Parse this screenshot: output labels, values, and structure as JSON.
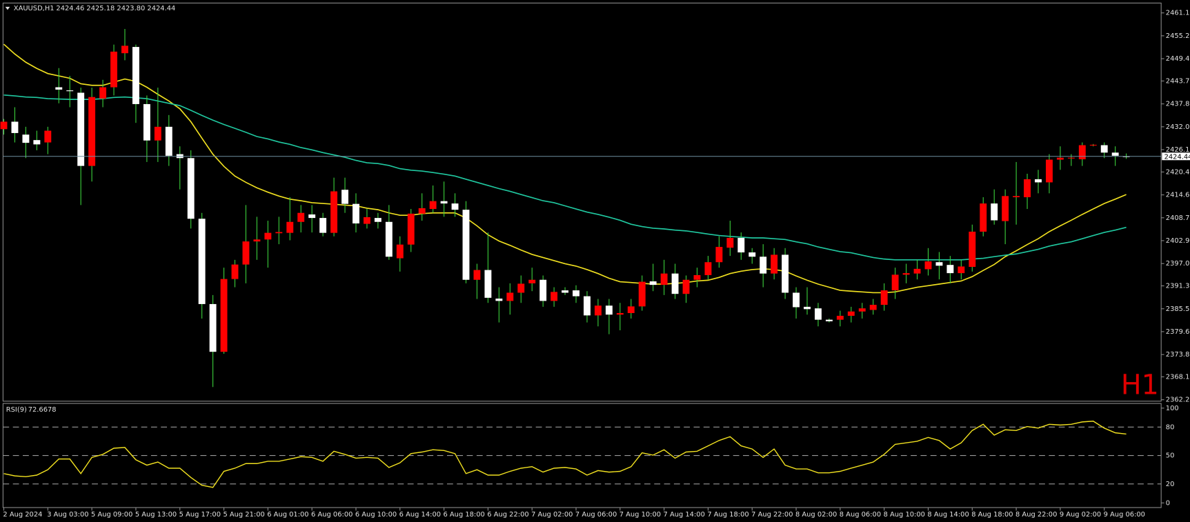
{
  "chart_data": [
    {
      "type": "candlestick",
      "title": "XAUUSD,H1",
      "quote": "2424.46 2425.18 2423.80 2424.44",
      "timeframe_label": "H1",
      "bull_color": "#ff0000",
      "bear_color": "#ffffff",
      "wick_color": "#3cd23c",
      "last_price_line_color": "#6f8fa0",
      "xlim": [
        -0.07,
        105.17
      ],
      "ylim": [
        2361.88,
        2463.62
      ],
      "yticks": [
        {
          "value": 2461.1,
          "label": "2461.10"
        },
        {
          "value": 2455.25,
          "label": "2455.25"
        },
        {
          "value": 2449.4,
          "label": "2449.40"
        },
        {
          "value": 2443.7,
          "label": "2443.70"
        },
        {
          "value": 2437.85,
          "label": "2437.85"
        },
        {
          "value": 2432.0,
          "label": "2432.00"
        },
        {
          "value": 2426.15,
          "label": "2426.15"
        },
        {
          "value": 2420.45,
          "label": "2420.45"
        },
        {
          "value": 2414.6,
          "label": "2414.60"
        },
        {
          "value": 2408.75,
          "label": "2408.75"
        },
        {
          "value": 2402.9,
          "label": "2402.90"
        },
        {
          "value": 2397.05,
          "label": "2397.05"
        },
        {
          "value": 2391.35,
          "label": "2391.35"
        },
        {
          "value": 2385.5,
          "label": "2385.50"
        },
        {
          "value": 2379.65,
          "label": "2379.65"
        },
        {
          "value": 2373.8,
          "label": "2373.80"
        },
        {
          "value": 2368.1,
          "label": "2368.10"
        },
        {
          "value": 2362.25,
          "label": "2362.25"
        }
      ],
      "open": [
        2431.4,
        2433.3,
        2430.0,
        2428.6,
        2428.0,
        2442.1,
        2441.3,
        2440.7,
        2422.0,
        2439.2,
        2442.1,
        2450.8,
        2452.4,
        2437.8,
        2428.5,
        2432.0,
        2425.0,
        2424.0,
        2408.5,
        2386.7,
        2374.5,
        2393.1,
        2396.8,
        2402.7,
        2403.2,
        2404.8,
        2404.9,
        2407.7,
        2409.6,
        2408.7,
        2404.9,
        2415.9,
        2412.3,
        2407.2,
        2408.7,
        2407.7,
        2398.4,
        2401.9,
        2409.8,
        2411.0,
        2413.0,
        2412.4,
        2410.8,
        2392.9,
        2395.4,
        2388.1,
        2387.5,
        2389.6,
        2392.0,
        2392.9,
        2387.5,
        2390.2,
        2390.2,
        2388.7,
        2383.8,
        2386.3,
        2384.0,
        2384.4,
        2386.1,
        2392.5,
        2391.6,
        2394.5,
        2389.3,
        2392.9,
        2394.1,
        2397.4,
        2401.1,
        2403.6,
        2399.9,
        2398.8,
        2394.5,
        2399.3,
        2389.6,
        2386.0,
        2385.6,
        2382.7,
        2382.7,
        2383.7,
        2384.8,
        2385.2,
        2386.5,
        2390.2,
        2394.2,
        2394.5,
        2395.6,
        2397.4,
        2396.7,
        2394.6,
        2396.2,
        2405.2,
        2412.4,
        2407.9,
        2414.0,
        2414.0,
        2418.6,
        2417.8,
        2423.6,
        2423.9,
        2423.7,
        2427.3,
        2427.3,
        2425.4,
        2424.46
      ],
      "high": [
        2434,
        2437,
        2432,
        2431,
        2432,
        2447,
        2445,
        2442,
        2442,
        2444,
        2453,
        2457,
        2453,
        2440,
        2442,
        2435,
        2427,
        2426,
        2410,
        2389,
        2396,
        2398,
        2412,
        2409,
        2408,
        2409,
        2414,
        2412,
        2412,
        2410,
        2419,
        2419,
        2415,
        2411,
        2410,
        2412,
        2404,
        2411,
        2415,
        2417,
        2418,
        2415,
        2413,
        2397,
        2405,
        2391,
        2392,
        2394,
        2396,
        2394,
        2391,
        2391,
        2391.5,
        2390,
        2388,
        2388,
        2387,
        2388,
        2394,
        2397,
        2398,
        2397,
        2394,
        2396,
        2399,
        2404,
        2408,
        2405,
        2401,
        2402,
        2401,
        2401,
        2391,
        2391,
        2387,
        2383,
        2385,
        2386,
        2387,
        2388,
        2392,
        2396,
        2397,
        2398,
        2401,
        2400,
        2399,
        2398,
        2407,
        2414,
        2416,
        2416,
        2423,
        2420,
        2421,
        2425,
        2427,
        2425,
        2428,
        2427.6,
        2428,
        2427,
        2425.18
      ],
      "low": [
        2430,
        2428,
        2424,
        2426,
        2425,
        2438,
        2437,
        2412,
        2418,
        2437,
        2440,
        2449,
        2433,
        2423,
        2423,
        2422,
        2416,
        2406,
        2383,
        2365.5,
        2374,
        2391,
        2392,
        2398,
        2396,
        2402,
        2403,
        2405,
        2405,
        2404,
        2404,
        2410,
        2405,
        2406,
        2406,
        2398,
        2395,
        2400,
        2408,
        2410,
        2409,
        2409,
        2392,
        2388,
        2387,
        2382,
        2384,
        2387,
        2390,
        2386,
        2386,
        2389,
        2387,
        2382,
        2381,
        2379,
        2380,
        2383,
        2385,
        2390,
        2389,
        2388,
        2387,
        2391,
        2393,
        2396,
        2399,
        2398,
        2397,
        2391,
        2393,
        2388,
        2383,
        2384,
        2381,
        2382,
        2381,
        2382,
        2383,
        2384,
        2385,
        2388,
        2392,
        2393,
        2394,
        2393,
        2392,
        2393,
        2395,
        2404,
        2407,
        2402,
        2407,
        2411,
        2415,
        2415,
        2421,
        2422,
        2422,
        2427,
        2424,
        2422,
        2423.8
      ],
      "close": [
        2433.3,
        2430.4,
        2427.9,
        2427.5,
        2431.0,
        2441.5,
        2441.1,
        2422.0,
        2439.6,
        2442.1,
        2451.2,
        2452.7,
        2437.8,
        2428.5,
        2432.0,
        2424.6,
        2424.0,
        2408.5,
        2386.7,
        2374.5,
        2393.1,
        2396.8,
        2402.7,
        2403.2,
        2404.9,
        2405.1,
        2407.7,
        2410.0,
        2408.7,
        2404.9,
        2415.5,
        2412.3,
        2407.3,
        2408.9,
        2407.7,
        2398.8,
        2401.9,
        2409.8,
        2411.2,
        2413.0,
        2412.4,
        2410.8,
        2392.9,
        2395.4,
        2388.3,
        2387.5,
        2389.6,
        2391.9,
        2392.9,
        2387.5,
        2389.8,
        2389.6,
        2388.7,
        2383.8,
        2386.3,
        2384.0,
        2384.4,
        2386.1,
        2392.4,
        2391.6,
        2394.5,
        2389.3,
        2392.9,
        2394.1,
        2397.4,
        2401.3,
        2403.6,
        2399.9,
        2398.8,
        2394.5,
        2399.3,
        2389.6,
        2385.9,
        2385.4,
        2382.7,
        2382.3,
        2383.7,
        2384.8,
        2385.6,
        2386.5,
        2390.2,
        2394.2,
        2394.6,
        2395.7,
        2397.6,
        2396.5,
        2394.6,
        2396.3,
        2405.2,
        2412.4,
        2408.1,
        2414.3,
        2414.3,
        2418.6,
        2417.8,
        2423.6,
        2424.1,
        2424.1,
        2427.3,
        2427.4,
        2425.4,
        2424.6,
        2424.44
      ],
      "series": [
        {
          "color": "#f0e020",
          "values": [
            2453.1,
            2450.6,
            2448.5,
            2446.9,
            2445.6,
            2445.0,
            2444.4,
            2443.0,
            2442.6,
            2442.6,
            2443.4,
            2444.2,
            2443.6,
            2442.1,
            2440.3,
            2438.6,
            2436.6,
            2433.3,
            2429.1,
            2425.0,
            2421.9,
            2419.4,
            2417.8,
            2416.4,
            2415.3,
            2414.3,
            2413.5,
            2413.1,
            2412.6,
            2412.4,
            2412.2,
            2412.0,
            2411.8,
            2411.2,
            2410.8,
            2410.0,
            2409.4,
            2409.4,
            2409.8,
            2410.0,
            2410.0,
            2410.0,
            2408.7,
            2406.7,
            2404.4,
            2402.8,
            2401.7,
            2400.5,
            2399.4,
            2398.6,
            2397.8,
            2397.0,
            2396.4,
            2395.5,
            2394.5,
            2393.3,
            2392.4,
            2392.2,
            2392.0,
            2391.8,
            2391.8,
            2392.0,
            2392.2,
            2392.6,
            2392.8,
            2393.5,
            2394.5,
            2395.1,
            2395.5,
            2395.7,
            2395.5,
            2395.1,
            2393.9,
            2392.8,
            2391.8,
            2391.0,
            2390.2,
            2390.0,
            2389.8,
            2389.6,
            2389.6,
            2389.8,
            2390.4,
            2391.0,
            2391.4,
            2391.8,
            2392.2,
            2392.6,
            2393.7,
            2395.3,
            2396.8,
            2398.8,
            2400.3,
            2401.9,
            2403.4,
            2405.2,
            2406.7,
            2408.1,
            2409.6,
            2411.0,
            2412.4,
            2413.5,
            2414.7
          ]
        },
        {
          "color": "#20c8a0",
          "values": [
            2440.1,
            2439.9,
            2439.6,
            2439.5,
            2439.2,
            2439.1,
            2439.0,
            2439.0,
            2439.0,
            2439.2,
            2439.5,
            2439.6,
            2439.4,
            2439.2,
            2438.6,
            2438.0,
            2437.4,
            2436.2,
            2434.9,
            2433.7,
            2432.6,
            2431.6,
            2430.6,
            2429.5,
            2428.9,
            2428.1,
            2427.5,
            2426.7,
            2426.1,
            2425.4,
            2424.8,
            2424.2,
            2423.4,
            2422.8,
            2422.6,
            2422.1,
            2421.3,
            2420.9,
            2420.7,
            2420.3,
            2419.9,
            2419.4,
            2418.6,
            2417.8,
            2417.0,
            2416.2,
            2415.5,
            2414.7,
            2413.9,
            2413.1,
            2412.6,
            2411.8,
            2411.0,
            2410.2,
            2409.6,
            2408.9,
            2408.1,
            2407.1,
            2406.5,
            2406.1,
            2405.9,
            2405.6,
            2405.4,
            2405.0,
            2404.6,
            2404.2,
            2404.0,
            2403.8,
            2403.6,
            2403.6,
            2403.4,
            2403.2,
            2402.6,
            2402.1,
            2401.3,
            2400.7,
            2400.1,
            2399.8,
            2399.2,
            2398.6,
            2398.2,
            2398.0,
            2398.0,
            2398.0,
            2398.0,
            2398.0,
            2398.0,
            2398.0,
            2398.2,
            2398.4,
            2398.8,
            2399.2,
            2399.5,
            2400.1,
            2400.7,
            2401.5,
            2402.1,
            2402.6,
            2403.4,
            2404.2,
            2405.0,
            2405.6,
            2406.3
          ]
        }
      ]
    },
    {
      "type": "line",
      "title": "RSI(9)",
      "color": "#f0e020",
      "xlim": [
        -0.07,
        105.17
      ],
      "ylim": [
        -4.9,
        104.9
      ],
      "yticks": [
        100,
        80,
        50,
        20,
        0
      ],
      "values": [
        30.9,
        28.5,
        27.6,
        29.3,
        35.0,
        46.3,
        46.3,
        30.9,
        48.0,
        51.2,
        57.7,
        58.5,
        45.5,
        39.8,
        43.1,
        36.6,
        36.6,
        26.8,
        18.7,
        16.3,
        33.3,
        36.6,
        41.5,
        41.5,
        43.9,
        43.9,
        46.3,
        48.8,
        48.0,
        43.9,
        54.5,
        51.2,
        47.2,
        48.0,
        47.2,
        37.4,
        42.3,
        52.0,
        53.7,
        56.1,
        55.3,
        52.0,
        30.9,
        35.0,
        29.3,
        29.3,
        33.3,
        36.6,
        38.2,
        32.5,
        36.6,
        37.4,
        35.8,
        29.3,
        34.1,
        32.5,
        33.3,
        38.2,
        52.8,
        50.4,
        56.1,
        47.2,
        53.7,
        54.5,
        60.2,
        65.9,
        69.9,
        60.2,
        56.9,
        48.0,
        56.9,
        39.8,
        35.8,
        35.8,
        31.7,
        31.7,
        33.3,
        36.6,
        39.8,
        43.1,
        51.2,
        61.8,
        63.4,
        65.0,
        69.1,
        65.9,
        56.9,
        63.4,
        76.4,
        82.9,
        71.5,
        77.2,
        76.4,
        80.5,
        78.9,
        82.9,
        82.1,
        82.9,
        85.4,
        86.2,
        78.9,
        74.0,
        72.6678
      ],
      "xticks": [
        {
          "value": 0,
          "label": "2 Aug 2024"
        },
        {
          "value": 4,
          "label": "3 Aug 03:00"
        },
        {
          "value": 8,
          "label": "5 Aug 09:00"
        },
        {
          "value": 12,
          "label": "5 Aug 13:00"
        },
        {
          "value": 16,
          "label": "5 Aug 17:00"
        },
        {
          "value": 20,
          "label": "5 Aug 21:00"
        },
        {
          "value": 24,
          "label": "6 Aug 01:00"
        },
        {
          "value": 28,
          "label": "6 Aug 06:00"
        },
        {
          "value": 32,
          "label": "6 Aug 10:00"
        },
        {
          "value": 36,
          "label": "6 Aug 14:00"
        },
        {
          "value": 40,
          "label": "6 Aug 18:00"
        },
        {
          "value": 44,
          "label": "6 Aug 22:00"
        },
        {
          "value": 48,
          "label": "7 Aug 02:00"
        },
        {
          "value": 52,
          "label": "7 Aug 06:00"
        },
        {
          "value": 56,
          "label": "7 Aug 10:00"
        },
        {
          "value": 60,
          "label": "7 Aug 14:00"
        },
        {
          "value": 64,
          "label": "7 Aug 18:00"
        },
        {
          "value": 68,
          "label": "7 Aug 22:00"
        },
        {
          "value": 72,
          "label": "8 Aug 02:00"
        },
        {
          "value": 76,
          "label": "8 Aug 06:00"
        },
        {
          "value": 80,
          "label": "8 Aug 10:00"
        },
        {
          "value": 84,
          "label": "8 Aug 14:00"
        },
        {
          "value": 88,
          "label": "8 Aug 18:00"
        },
        {
          "value": 92,
          "label": "8 Aug 22:00"
        },
        {
          "value": 96,
          "label": "9 Aug 02:00"
        },
        {
          "value": 100,
          "label": "9 Aug 06:00"
        }
      ]
    }
  ]
}
